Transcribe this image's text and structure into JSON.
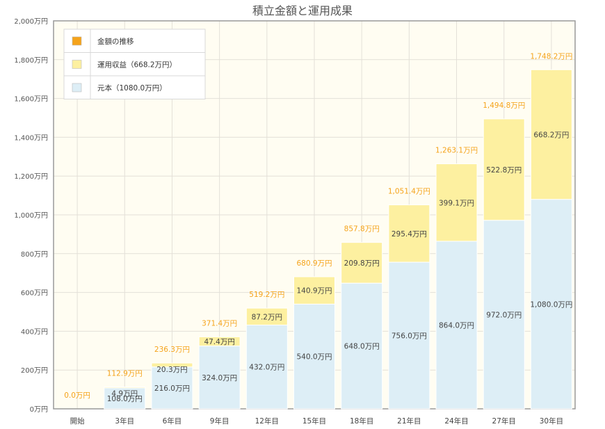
{
  "chart_data": {
    "type": "bar",
    "title": "積立金額と運用成果",
    "categories": [
      "開始",
      "3年目",
      "6年目",
      "9年目",
      "12年目",
      "15年目",
      "18年目",
      "21年目",
      "24年目",
      "27年目",
      "30年目"
    ],
    "unit": "万円",
    "ylim": [
      0,
      2000
    ],
    "yticks": [
      0,
      200,
      400,
      600,
      800,
      1000,
      1200,
      1400,
      1600,
      1800,
      2000
    ],
    "ytick_labels": [
      "0万円",
      "200万円",
      "400万円",
      "600万円",
      "800万円",
      "1,000万円",
      "1,200万円",
      "1,400万円",
      "1,600万円",
      "1,800万円",
      "2,000万円"
    ],
    "stacked": true,
    "grid": true,
    "legend_position": "top-left",
    "legend": [
      {
        "label": "金額の推移",
        "color": "#f5a31a"
      },
      {
        "label": "運用収益（668.2万円）",
        "color": "#fdf0a0"
      },
      {
        "label": "元本（1080.0万円）",
        "color": "#ddeef6"
      }
    ],
    "series": [
      {
        "name": "元本",
        "color": "#ddeef6",
        "values": [
          0,
          108.0,
          216.0,
          324.0,
          432.0,
          540.0,
          648.0,
          756.0,
          864.0,
          972.0,
          1080.0
        ],
        "labels": [
          "",
          "108.0万円",
          "216.0万円",
          "324.0万円",
          "432.0万円",
          "540.0万円",
          "648.0万円",
          "756.0万円",
          "864.0万円",
          "972.0万円",
          "1,080.0万円"
        ]
      },
      {
        "name": "運用収益",
        "color": "#fdf0a0",
        "values": [
          0,
          4.9,
          20.3,
          47.4,
          87.2,
          140.9,
          209.8,
          295.4,
          399.1,
          522.8,
          668.2
        ],
        "labels": [
          "",
          "4.9万円",
          "20.3万円",
          "47.4万円",
          "87.2万円",
          "140.9万円",
          "209.8万円",
          "295.4万円",
          "399.1万円",
          "522.8万円",
          "668.2万円"
        ]
      }
    ],
    "totals": {
      "color": "#f5a31a",
      "values": [
        0.0,
        112.9,
        236.3,
        371.4,
        519.2,
        680.9,
        857.8,
        1051.4,
        1263.1,
        1494.8,
        1748.2
      ],
      "labels": [
        "0.0万円",
        "112.9万円",
        "236.3万円",
        "371.4万円",
        "519.2万円",
        "680.9万円",
        "857.8万円",
        "1,051.4万円",
        "1,263.1万円",
        "1,494.8万円",
        "1,748.2万円"
      ]
    }
  }
}
